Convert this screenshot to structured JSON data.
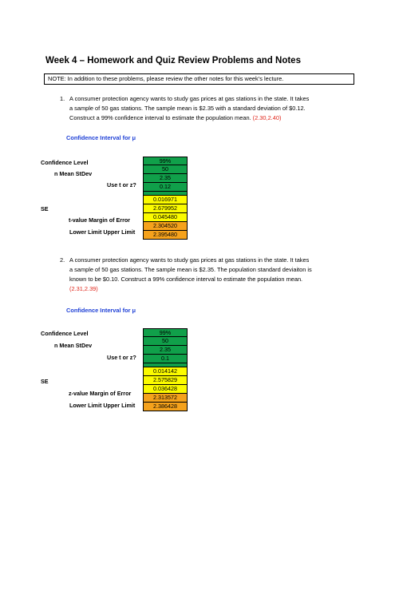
{
  "title": "Week 4 – Homework and Quiz Review Problems and Notes",
  "note": "NOTE:  In addition to these problems, please review the other notes for this week’s lecture.",
  "problems": [
    {
      "number": "1.",
      "line1": "A consumer protection agency wants to study gas prices at gas stations in the state.  It takes",
      "line2": "a sample of 50 gas stations. The sample mean is $2.35 with a standard deviation of $0.12.",
      "line3": "Construct a 99% confidence interval to estimate the population mean.",
      "answer": "(2.30,2.40)",
      "ci_title": "Confidence Interval for μ",
      "labels": {
        "confidence_level": "Confidence Level",
        "n_mean_stdev": "n Mean StDev",
        "use_t_or_z": "Use t or z?",
        "se": "SE",
        "value_margin": "t-value Margin of Error",
        "limits": "Lower Limit Upper Limit"
      },
      "values": [
        "99%",
        "50",
        "2.35",
        "0.12",
        "",
        "0.016971",
        "2.679952",
        "0.045480",
        "2.304520",
        "2.395480"
      ]
    },
    {
      "number": "2.",
      "line1": "A consumer protection agency wants to study gas prices at gas stations in the state.  It takes",
      "line2": "a sample of 50 gas stations. The sample mean is $2.35. The population standard deviaiton is",
      "line3": "known to be $0.10. Construct a 99% confidence interval to estimate the population mean.",
      "answer": "(2.31,2.39)",
      "ci_title": "Confidence Interval for μ",
      "labels": {
        "confidence_level": "Confidence Level",
        "n_mean_stdev": "n Mean StDev",
        "use_t_or_z": "Use t or z?",
        "se": "SE",
        "value_margin": "z-value Margin of Error",
        "limits": "Lower Limit Upper Limit"
      },
      "values": [
        "99%",
        "50",
        "2.35",
        "0.1",
        "",
        "0.014142",
        "2.575829",
        "0.036428",
        "2.313572",
        "2.386428"
      ]
    }
  ]
}
